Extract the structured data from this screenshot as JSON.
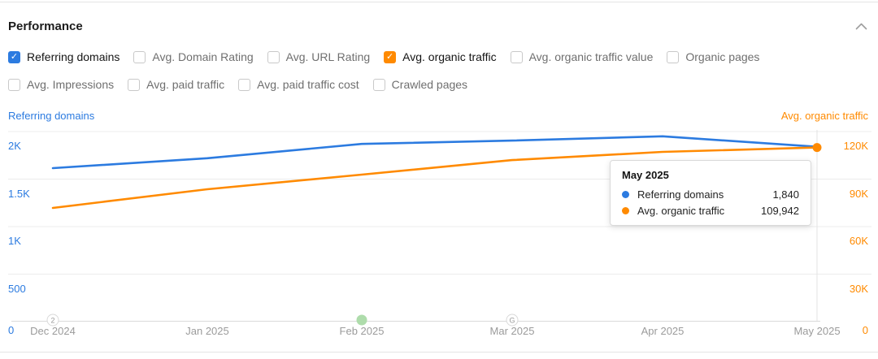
{
  "header": {
    "title": "Performance"
  },
  "colors": {
    "blue": "#2c7be0",
    "orange": "#ff8a00",
    "grid": "#ececec",
    "axis_line": "#dadada",
    "hover_line": "#e3e3e3",
    "green_marker": "#aedcab"
  },
  "metrics_row1": [
    {
      "label": "Referring domains",
      "checked": true,
      "color": "#2c7be0"
    },
    {
      "label": "Avg. Domain Rating",
      "checked": false
    },
    {
      "label": "Avg. URL Rating",
      "checked": false
    },
    {
      "label": "Avg. organic traffic",
      "checked": true,
      "color": "#ff8a00"
    },
    {
      "label": "Avg. organic traffic value",
      "checked": false
    },
    {
      "label": "Organic pages",
      "checked": false
    }
  ],
  "metrics_row2": [
    {
      "label": "Avg. Impressions",
      "checked": false
    },
    {
      "label": "Avg. paid traffic",
      "checked": false
    },
    {
      "label": "Avg. paid traffic cost",
      "checked": false
    },
    {
      "label": "Crawled pages",
      "checked": false
    }
  ],
  "chart": {
    "left_axis_title": "Referring domains",
    "right_axis_title": "Avg. organic traffic",
    "left_ticks": [
      "2K",
      "1.5K",
      "1K",
      "500",
      "0"
    ],
    "right_ticks": [
      "120K",
      "90K",
      "60K",
      "30K",
      "0"
    ],
    "x_labels": [
      "Dec 2024",
      "Jan 2025",
      "Feb 2025",
      "Mar 2025",
      "Apr 2025",
      "May 2025"
    ],
    "timeline_markers": [
      {
        "type": "circle",
        "label": "2",
        "month_index": 0
      },
      {
        "type": "green-dot",
        "label": "",
        "month_index": 2
      },
      {
        "type": "circle",
        "label": "G",
        "month_index": 3
      }
    ]
  },
  "tooltip": {
    "title": "May 2025",
    "rows": [
      {
        "label": "Referring domains",
        "value": "1,840",
        "color": "#2c7be0"
      },
      {
        "label": "Avg. organic traffic",
        "value": "109,942",
        "color": "#ff8a00"
      }
    ]
  },
  "chart_data": {
    "type": "line",
    "x": [
      "Dec 2024",
      "Jan 2025",
      "Feb 2025",
      "Mar 2025",
      "Apr 2025",
      "May 2025"
    ],
    "series": [
      {
        "name": "Referring domains",
        "axis": "left",
        "color": "#2c7be0",
        "values": [
          1615,
          1720,
          1870,
          1905,
          1950,
          1840
        ]
      },
      {
        "name": "Avg. organic traffic",
        "axis": "right",
        "color": "#ff8a00",
        "values": [
          71800,
          83600,
          92800,
          102000,
          107200,
          109942
        ]
      }
    ],
    "left_ylim": [
      0,
      2000
    ],
    "right_ylim": [
      0,
      120000
    ],
    "left_tick_values": [
      2000,
      1500,
      1000,
      500,
      0
    ],
    "right_tick_values": [
      120000,
      90000,
      60000,
      30000,
      0
    ],
    "grid": true,
    "legend_position": "none",
    "hovered_point": "May 2025"
  }
}
